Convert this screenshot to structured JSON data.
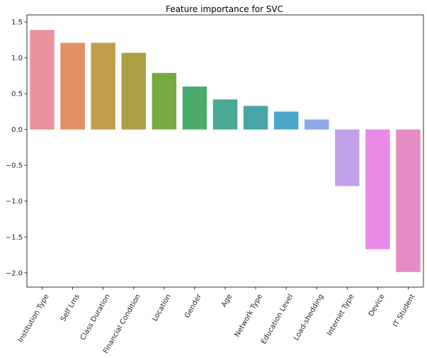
{
  "chart_data": {
    "type": "bar",
    "title": "Feature importance for SVC",
    "xlabel": "",
    "ylabel": "",
    "categories": [
      "Institution Type",
      "Self Lms",
      "Class Duration",
      "Financial Condition",
      "Location",
      "Gender",
      "Age",
      "Network Type",
      "Education Level",
      "Load-shedding",
      "Internet Type",
      "Device",
      "IT Student"
    ],
    "values": [
      1.39,
      1.21,
      1.21,
      1.07,
      0.79,
      0.6,
      0.42,
      0.33,
      0.25,
      0.14,
      -0.79,
      -1.67,
      -1.99
    ],
    "colors": [
      "#e9919c",
      "#e49066",
      "#c39c4b",
      "#a9a143",
      "#79a945",
      "#4cab6d",
      "#4aa896",
      "#49a5a5",
      "#4aa7c8",
      "#8ea9ea",
      "#c1a2ea",
      "#e78ae7",
      "#e48dc2"
    ],
    "ylim": [
      -2.2,
      1.6
    ],
    "yticks": [
      -2.0,
      -1.5,
      -1.0,
      -0.5,
      0.0,
      0.5,
      1.0,
      1.5
    ],
    "ytick_labels": [
      "−2.0",
      "−1.5",
      "−1.0",
      "−0.5",
      "0.0",
      "0.5",
      "1.0",
      "1.5"
    ],
    "grid": false,
    "legend": "none"
  }
}
